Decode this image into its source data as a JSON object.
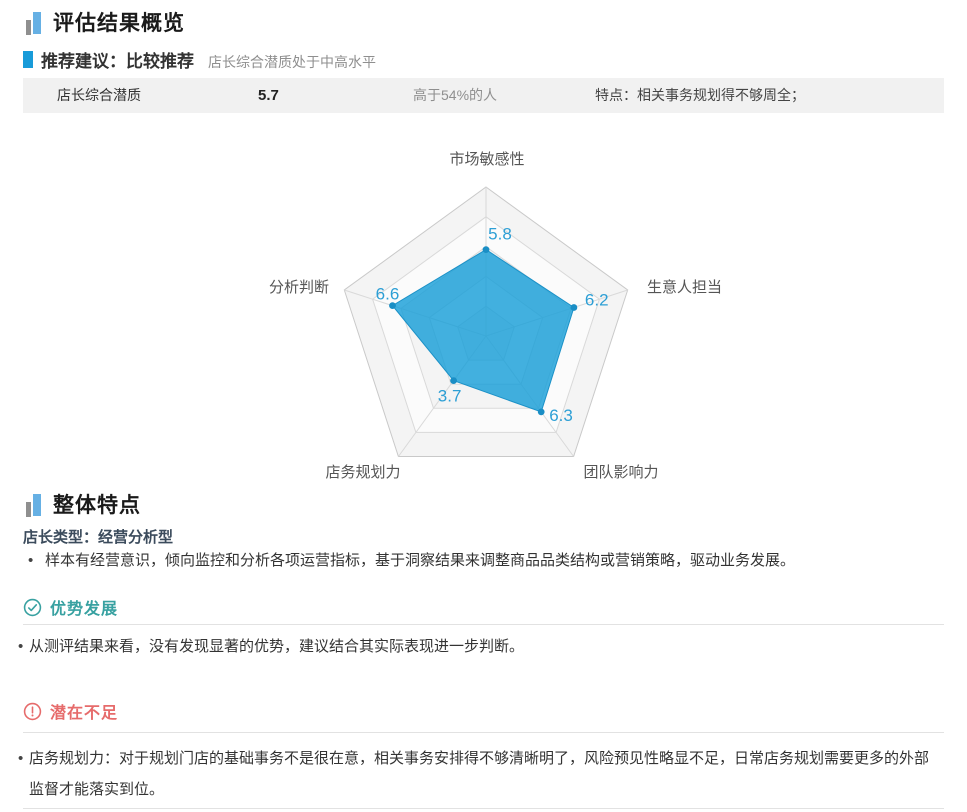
{
  "colors": {
    "accent_blue": "#189bd9",
    "header_bar_blue": "#66b0e4",
    "header_bar_gray": "#8f8f8f",
    "radar_fill": "#189fd8",
    "radar_stroke": "#1b91c7",
    "radar_dot": "#1a8ec5",
    "value_label_blue": "#2d9fd5",
    "axis_label_gray": "#555555",
    "grid_line": "#d9d9d9",
    "strength_teal": "#38a1a1",
    "weakness_red": "#e66b6b"
  },
  "overview": {
    "title": "评估结果概览",
    "recommendation_label": "推荐建议：比较推荐",
    "recommendation_note": "店长综合潜质处于中高水平",
    "summary_row": {
      "name": "店长综合潜质",
      "score": "5.7",
      "percentile": "高于54%的人",
      "trait": "特点：相关事务规划得不够周全；"
    }
  },
  "chart_data": {
    "type": "radar",
    "categories": [
      "市场敏感性",
      "生意人担当",
      "团队影响力",
      "店务规划力",
      "分析判断"
    ],
    "values": [
      5.8,
      6.2,
      6.3,
      3.7,
      6.6
    ],
    "scale_min": 0,
    "scale_max": 10,
    "rings": 5,
    "grid": "pentagon"
  },
  "overall": {
    "title": "整体特点",
    "type_label": "店长类型：",
    "type_value": "经营分析型",
    "bullet": "样本有经营意识，倾向监控和分析各项运营指标，基于洞察结果来调整商品品类结构或营销策略，驱动业务发展。"
  },
  "strengths": {
    "title": "优势发展",
    "items": [
      "从测评结果来看，没有发现显著的优势，建议结合其实际表现进一步判断。"
    ]
  },
  "weaknesses": {
    "title": "潜在不足",
    "items": [
      "店务规划力：对于规划门店的基础事务不是很在意，相关事务安排得不够清晰明了，风险预见性略显不足，日常店务规划需要更多的外部监督才能落实到位。"
    ]
  }
}
